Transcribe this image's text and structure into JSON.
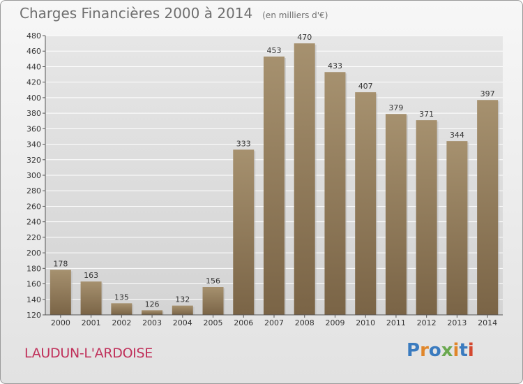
{
  "header": {
    "title": "Charges Financières 2000 à 2014",
    "subtitle": "(en milliers d'€)"
  },
  "footer": {
    "commune": "LAUDUN-L'ARDOISE",
    "logo_text": "Proxiti",
    "logo_colors": [
      "#3a7bbf",
      "#e0862a",
      "#3a7bbf",
      "#6aa84f",
      "#e0862a",
      "#3a7bbf",
      "#d4482f"
    ]
  },
  "colors": {
    "bar_top": "#a6916f",
    "bar_bottom": "#7a6446",
    "axis": "#555555",
    "grid": "#ffffff",
    "text": "#333333"
  },
  "chart_data": {
    "type": "bar",
    "title": "Charges Financières 2000 à 2014",
    "subtitle": "(en milliers d'€)",
    "categories": [
      "2000",
      "2001",
      "2002",
      "2003",
      "2004",
      "2005",
      "2006",
      "2007",
      "2008",
      "2009",
      "2010",
      "2011",
      "2012",
      "2013",
      "2014"
    ],
    "values": [
      178,
      163,
      135,
      126,
      132,
      156,
      333,
      453,
      470,
      433,
      407,
      379,
      371,
      344,
      397
    ],
    "ylim": [
      120,
      480
    ],
    "yticks": [
      120,
      140,
      160,
      180,
      200,
      220,
      240,
      260,
      280,
      300,
      320,
      340,
      360,
      380,
      400,
      420,
      440,
      460,
      480
    ],
    "grid": true,
    "xlabel": "",
    "ylabel": ""
  }
}
